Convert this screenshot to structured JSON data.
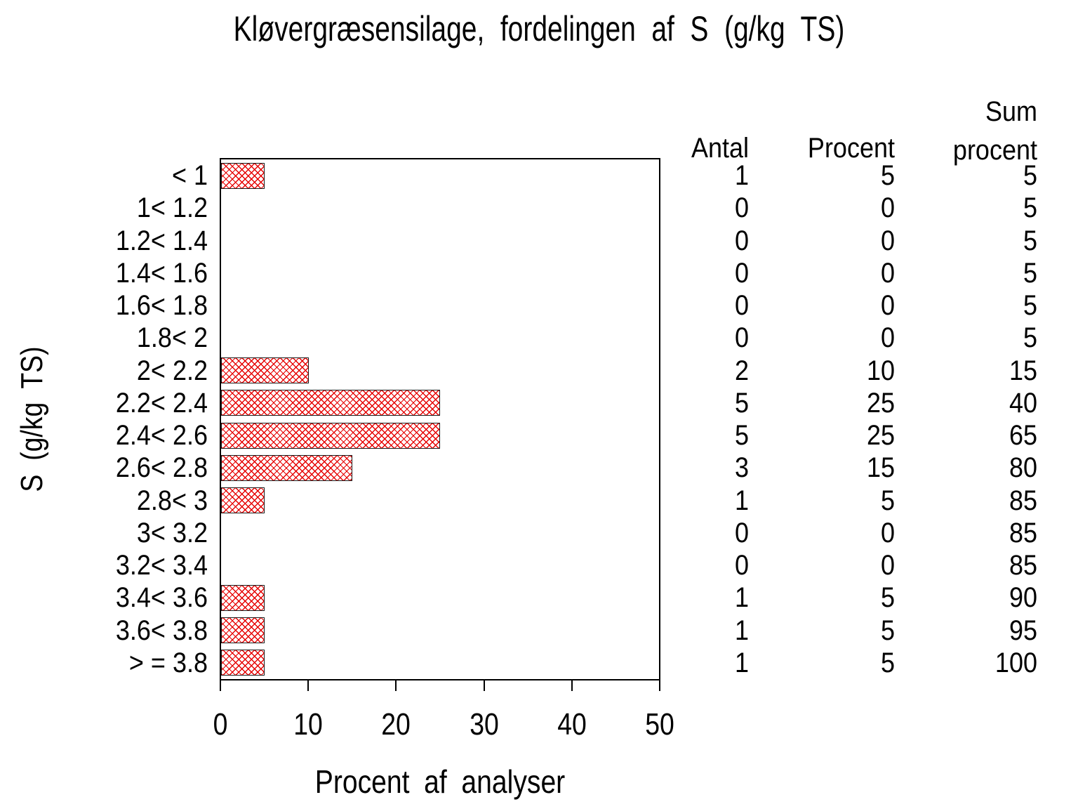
{
  "title": "Kløvergræsensilage, fordelingen af S (g/kg TS)",
  "chart_data": {
    "type": "bar",
    "orientation": "horizontal",
    "title": "Kløvergræsensilage, fordelingen af S (g/kg TS)",
    "xlabel": "Procent af analyser",
    "ylabel": "S (g/kg TS)",
    "xlim": [
      0,
      50
    ],
    "xticks": [
      0,
      10,
      20,
      30,
      40,
      50
    ],
    "grid": false,
    "legend": "none",
    "bar_fill": "red crosshatch pattern on white",
    "bar_color": "#e60000",
    "categories": [
      "< 1",
      "1< 1.2",
      "1.2< 1.4",
      "1.4< 1.6",
      "1.6< 1.8",
      "1.8< 2",
      "2< 2.2",
      "2.2< 2.4",
      "2.4< 2.6",
      "2.6< 2.8",
      "2.8< 3",
      "3< 3.2",
      "3.2< 3.4",
      "3.4< 3.6",
      "3.6< 3.8",
      "> = 3.8"
    ],
    "bars_show_series": "Procent",
    "series": [
      {
        "name": "Antal",
        "values": [
          1,
          0,
          0,
          0,
          0,
          0,
          2,
          5,
          5,
          3,
          1,
          0,
          0,
          1,
          1,
          1
        ]
      },
      {
        "name": "Procent",
        "values": [
          5,
          0,
          0,
          0,
          0,
          0,
          10,
          25,
          25,
          15,
          5,
          0,
          0,
          5,
          5,
          5
        ]
      },
      {
        "name": "Sum procent",
        "values": [
          5,
          5,
          5,
          5,
          5,
          5,
          15,
          40,
          65,
          80,
          85,
          85,
          85,
          90,
          95,
          100
        ]
      }
    ]
  },
  "table": {
    "headers": [
      "Antal",
      "Procent",
      "Sum procent"
    ],
    "sum_header_lines": [
      "Sum",
      "procent"
    ]
  }
}
